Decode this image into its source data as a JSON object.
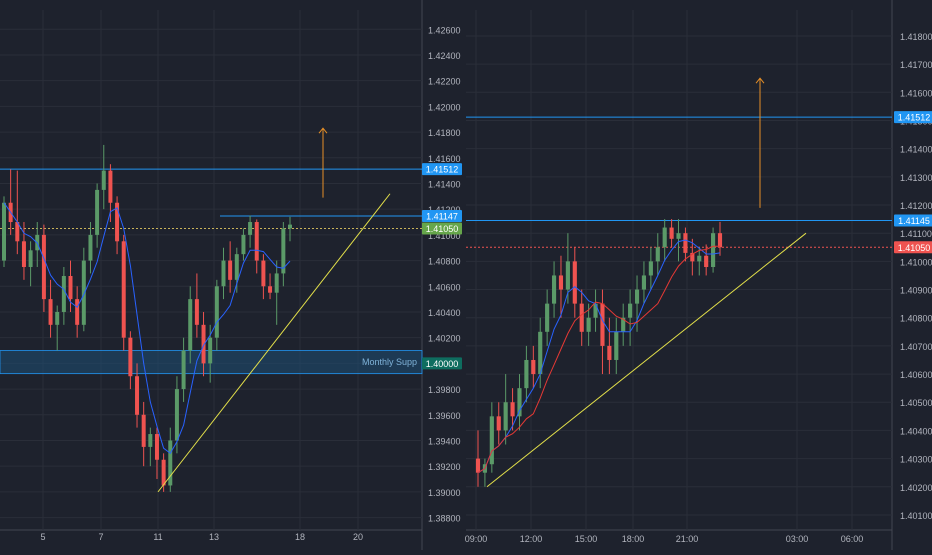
{
  "chart_data": [
    {
      "type": "candlestick",
      "panel": "left",
      "y_axis": {
        "ticks": [
          "1.42600",
          "1.42400",
          "1.42200",
          "1.42000",
          "1.41800",
          "1.41600",
          "1.41400",
          "1.41200",
          "1.41000",
          "1.40800",
          "1.40600",
          "1.40400",
          "1.40200",
          "1.40000",
          "1.39800",
          "1.39600",
          "1.39400",
          "1.39200",
          "1.39000",
          "1.38800"
        ],
        "ylim": [
          1.3875,
          1.4275
        ]
      },
      "x_axis": {
        "ticks": [
          "5",
          "7",
          "11",
          "13",
          "18",
          "20"
        ]
      },
      "price_labels": [
        {
          "value": 1.41512,
          "text": "1.41512",
          "color": "#2196f3"
        },
        {
          "value": 1.41147,
          "text": "1.41147",
          "color": "#2196f3"
        },
        {
          "value": 1.4105,
          "text": "1.41050",
          "color": "#66a64b"
        },
        {
          "value": 1.4,
          "text": "1.40000",
          "color": "#0e6d5f"
        }
      ],
      "zone": {
        "label": "Monthly Supp",
        "from": 1.3992,
        "to": 1.401
      },
      "horizontal_levels": [
        1.41512,
        1.41147,
        1.4105
      ],
      "trendline": [
        {
          "x": "11",
          "y": 1.39
        },
        {
          "x": "after 18",
          "y": 1.4132
        }
      ],
      "arrow": {
        "from": 1.4129,
        "to": 1.4183,
        "color": "#e58e26"
      },
      "candles": [
        [
          1.408,
          1.413,
          1.4075,
          1.4125
        ],
        [
          1.4125,
          1.4151,
          1.41,
          1.411
        ],
        [
          1.411,
          1.415,
          1.4085,
          1.4095
        ],
        [
          1.4095,
          1.411,
          1.4065,
          1.4075
        ],
        [
          1.4075,
          1.4095,
          1.406,
          1.4088
        ],
        [
          1.4088,
          1.411,
          1.4075,
          1.41
        ],
        [
          1.41,
          1.4108,
          1.404,
          1.405
        ],
        [
          1.405,
          1.4065,
          1.402,
          1.403
        ],
        [
          1.403,
          1.4045,
          1.401,
          1.404
        ],
        [
          1.404,
          1.4075,
          1.403,
          1.4068
        ],
        [
          1.4068,
          1.408,
          1.404,
          1.405
        ],
        [
          1.405,
          1.406,
          1.402,
          1.403
        ],
        [
          1.403,
          1.409,
          1.4025,
          1.408
        ],
        [
          1.408,
          1.411,
          1.407,
          1.41
        ],
        [
          1.41,
          1.414,
          1.409,
          1.4135
        ],
        [
          1.4135,
          1.417,
          1.412,
          1.415
        ],
        [
          1.415,
          1.4155,
          1.411,
          1.4125
        ],
        [
          1.4125,
          1.413,
          1.4085,
          1.4095
        ],
        [
          1.4095,
          1.41,
          1.401,
          1.402
        ],
        [
          1.402,
          1.4025,
          1.398,
          1.399
        ],
        [
          1.399,
          1.4,
          1.395,
          1.396
        ],
        [
          1.396,
          1.397,
          1.392,
          1.3935
        ],
        [
          1.3935,
          1.395,
          1.392,
          1.3945
        ],
        [
          1.3945,
          1.395,
          1.391,
          1.3925
        ],
        [
          1.3925,
          1.393,
          1.39,
          1.3905
        ],
        [
          1.3905,
          1.395,
          1.39,
          1.394
        ],
        [
          1.394,
          1.399,
          1.393,
          1.398
        ],
        [
          1.398,
          1.402,
          1.397,
          1.401
        ],
        [
          1.401,
          1.406,
          1.4,
          1.405
        ],
        [
          1.405,
          1.407,
          1.402,
          1.403
        ],
        [
          1.403,
          1.404,
          1.399,
          1.4
        ],
        [
          1.4,
          1.403,
          1.3985,
          1.402
        ],
        [
          1.402,
          1.4065,
          1.401,
          1.406
        ],
        [
          1.406,
          1.409,
          1.405,
          1.408
        ],
        [
          1.408,
          1.4095,
          1.4055,
          1.4065
        ],
        [
          1.4065,
          1.409,
          1.4055,
          1.4085
        ],
        [
          1.4085,
          1.4105,
          1.408,
          1.41
        ],
        [
          1.41,
          1.4115,
          1.409,
          1.411
        ],
        [
          1.411,
          1.4112,
          1.407,
          1.408
        ],
        [
          1.408,
          1.4085,
          1.405,
          1.406
        ],
        [
          1.406,
          1.407,
          1.405,
          1.4055
        ],
        [
          1.4055,
          1.408,
          1.403,
          1.407
        ],
        [
          1.407,
          1.411,
          1.406,
          1.4105
        ],
        [
          1.4105,
          1.4114,
          1.4095,
          1.4108
        ]
      ]
    },
    {
      "type": "candlestick",
      "panel": "right",
      "y_axis": {
        "ticks": [
          "1.41800",
          "1.41700",
          "1.41600",
          "1.41500",
          "1.41400",
          "1.41300",
          "1.41200",
          "1.41100",
          "1.41000",
          "1.40900",
          "1.40800",
          "1.40700",
          "1.40600",
          "1.40500",
          "1.40400",
          "1.40300",
          "1.40200",
          "1.40100"
        ],
        "ylim": [
          1.40075,
          1.41885
        ]
      },
      "x_axis": {
        "ticks": [
          "09:00",
          "12:00",
          "15:00",
          "18:00",
          "21:00",
          "03:00",
          "06:00"
        ]
      },
      "price_labels": [
        {
          "value": 1.41512,
          "text": "1.41512",
          "color": "#2196f3"
        },
        {
          "value": 1.41145,
          "text": "1.41145",
          "color": "#2196f3"
        },
        {
          "value": 1.4105,
          "text": "1.41050",
          "color": "#ef5350"
        }
      ],
      "horizontal_levels": [
        1.41512,
        1.41145,
        1.4105
      ],
      "trendline": [
        {
          "x": "09:00",
          "y": 1.402
        },
        {
          "x": "after 03:00",
          "y": 1.411
        }
      ],
      "arrow": {
        "from": 1.4119,
        "to": 1.4165,
        "color": "#e58e26"
      },
      "candles": [
        [
          1.403,
          1.404,
          1.402,
          1.4025
        ],
        [
          1.4025,
          1.403,
          1.402,
          1.4028
        ],
        [
          1.4028,
          1.405,
          1.4025,
          1.4045
        ],
        [
          1.4045,
          1.405,
          1.4035,
          1.404
        ],
        [
          1.404,
          1.406,
          1.4035,
          1.405
        ],
        [
          1.405,
          1.4055,
          1.404,
          1.4045
        ],
        [
          1.4045,
          1.406,
          1.404,
          1.4055
        ],
        [
          1.4055,
          1.407,
          1.405,
          1.4065
        ],
        [
          1.4065,
          1.407,
          1.4055,
          1.406
        ],
        [
          1.406,
          1.408,
          1.4055,
          1.4075
        ],
        [
          1.4075,
          1.409,
          1.407,
          1.4085
        ],
        [
          1.4085,
          1.41,
          1.408,
          1.4095
        ],
        [
          1.4095,
          1.4102,
          1.408,
          1.409
        ],
        [
          1.409,
          1.411,
          1.4085,
          1.41
        ],
        [
          1.41,
          1.4105,
          1.408,
          1.4085
        ],
        [
          1.4085,
          1.409,
          1.407,
          1.4075
        ],
        [
          1.4075,
          1.4085,
          1.407,
          1.408
        ],
        [
          1.408,
          1.409,
          1.4075,
          1.4085
        ],
        [
          1.4085,
          1.409,
          1.406,
          1.407
        ],
        [
          1.407,
          1.408,
          1.406,
          1.4065
        ],
        [
          1.4065,
          1.408,
          1.406,
          1.4075
        ],
        [
          1.4075,
          1.4085,
          1.407,
          1.408
        ],
        [
          1.408,
          1.409,
          1.407,
          1.4085
        ],
        [
          1.4085,
          1.4095,
          1.4075,
          1.409
        ],
        [
          1.409,
          1.41,
          1.4085,
          1.4095
        ],
        [
          1.4095,
          1.4105,
          1.409,
          1.41
        ],
        [
          1.41,
          1.411,
          1.4095,
          1.4105
        ],
        [
          1.4105,
          1.4115,
          1.41,
          1.4112
        ],
        [
          1.4112,
          1.4115,
          1.4105,
          1.4108
        ],
        [
          1.4108,
          1.4115,
          1.41,
          1.411
        ],
        [
          1.411,
          1.4112,
          1.41,
          1.4103
        ],
        [
          1.4103,
          1.4108,
          1.4095,
          1.41
        ],
        [
          1.41,
          1.4105,
          1.4095,
          1.4102
        ],
        [
          1.4102,
          1.4106,
          1.4095,
          1.4098
        ],
        [
          1.4098,
          1.4112,
          1.4096,
          1.411
        ],
        [
          1.411,
          1.4114,
          1.4102,
          1.4105
        ]
      ]
    }
  ]
}
